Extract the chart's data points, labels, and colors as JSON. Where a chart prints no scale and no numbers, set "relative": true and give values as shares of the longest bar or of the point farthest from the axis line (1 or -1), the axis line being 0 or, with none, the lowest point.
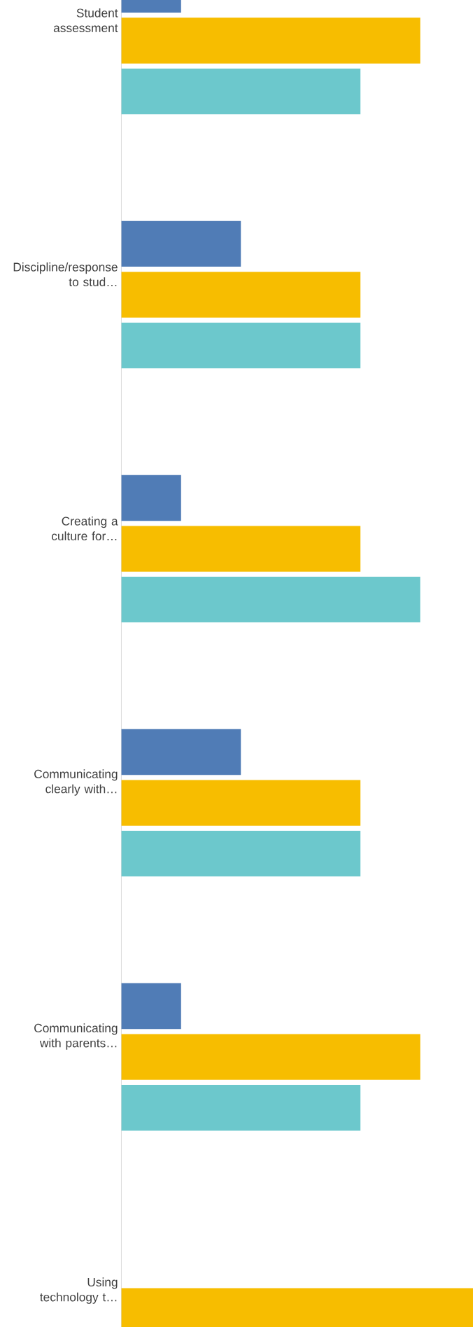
{
  "chart_data": {
    "type": "bar",
    "orientation": "horizontal",
    "relative": true,
    "categories": [
      "Student assessment",
      "Discipline/response to stud…",
      "Creating a culture for…",
      "Communicating clearly with…",
      "Communicating with parents…",
      "Using technology t…"
    ],
    "series": [
      {
        "color": "#507cb6",
        "values": [
          0.17,
          0.34,
          0.17,
          0.34,
          0.17,
          0
        ]
      },
      {
        "color": "#f7bd00",
        "values": [
          0.85,
          0.68,
          0.68,
          0.68,
          0.85,
          1
        ]
      },
      {
        "color": "#6cc8cc",
        "values": [
          0.68,
          0.68,
          0.85,
          0.68,
          0.68,
          null
        ]
      }
    ]
  }
}
